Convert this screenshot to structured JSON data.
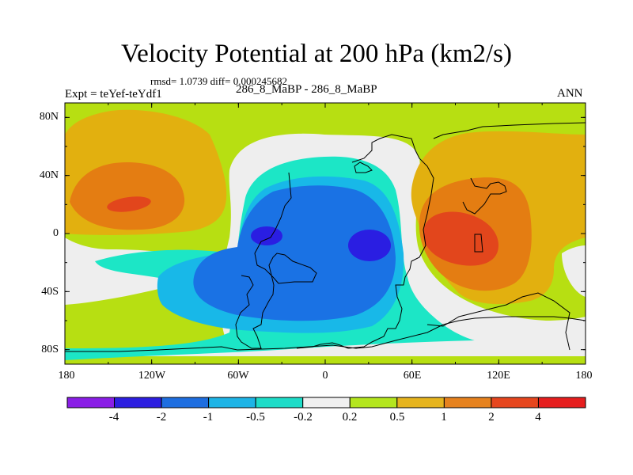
{
  "chart_data": {
    "type": "contour-map",
    "title": "Velocity Potential at 200 hPa (km2/s)",
    "subtitle_left_top": "rmsd= 1.0739 diff= 0.000245682",
    "subtitle_left": "Expt = teYef-teYdf1",
    "subtitle_center": "286_8_MaBP - 286_8_MaBP",
    "subtitle_right": "ANN",
    "y_ticks": [
      "80N",
      "40N",
      "0",
      "40S",
      "80S"
    ],
    "y_tick_values": [
      80,
      40,
      0,
      -40,
      -80
    ],
    "x_ticks": [
      "180",
      "120W",
      "60W",
      "0",
      "60E",
      "120E",
      "180"
    ],
    "x_tick_values": [
      -180,
      -120,
      -60,
      0,
      60,
      120,
      180
    ],
    "xlim": [
      -180,
      180
    ],
    "ylim": [
      -90,
      90
    ],
    "contour_levels": [
      "-4",
      "-2",
      "-1",
      "-0.5",
      "-0.2",
      "0.2",
      "0.5",
      "1",
      "2",
      "4"
    ],
    "colorbar_colors": [
      "#8a1ee6",
      "#2d1fe0",
      "#1e6ee0",
      "#1eb4e6",
      "#1edcc8",
      "#f0f0f0",
      "#b4e61e",
      "#e6b41e",
      "#e6821e",
      "#e6461e",
      "#e61e1e"
    ],
    "colors": {
      "neutral": "#eeeeee",
      "pos1": "#b7df12",
      "pos2": "#e2b00f",
      "pos3": "#e47d12",
      "pos4": "#e2461c",
      "neg1": "#1ce6c6",
      "neg2": "#18b8e8",
      "neg3": "#1a72e4",
      "neg4": "#2a1ee2"
    },
    "features": [
      {
        "name": "max-west-pacific",
        "level": "2",
        "lon": -130,
        "lat": 20
      },
      {
        "name": "max-indian-ocean",
        "level": "2",
        "lon": 90,
        "lat": 0
      },
      {
        "name": "min-south-america",
        "level": "-2",
        "lon": -38,
        "lat": 0
      },
      {
        "name": "min-africa",
        "level": "-2",
        "lon": 30,
        "lat": -8
      }
    ]
  }
}
